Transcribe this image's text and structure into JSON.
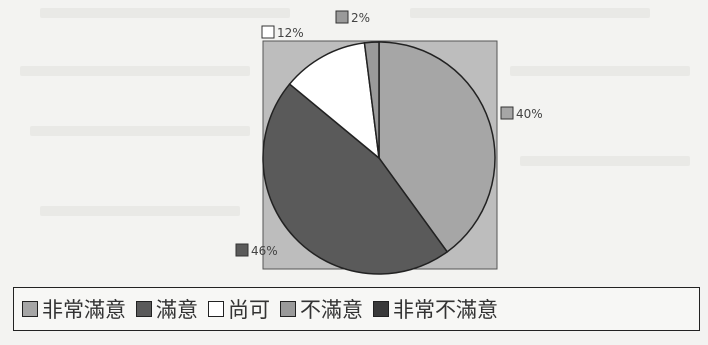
{
  "chart_data": {
    "type": "pie",
    "categories": [
      "非常滿意",
      "滿意",
      "尚可",
      "不滿意",
      "非常不滿意"
    ],
    "values": [
      40,
      46,
      12,
      2,
      0
    ],
    "labels": [
      "40%",
      "46%",
      "12%",
      "2%",
      ""
    ],
    "colors": [
      "#a6a6a6",
      "#5a5a5a",
      "#ffffff",
      "#9a9a9a",
      "#3a3a3a"
    ],
    "plot_background": "#bdbdbd",
    "legend_position": "bottom"
  }
}
